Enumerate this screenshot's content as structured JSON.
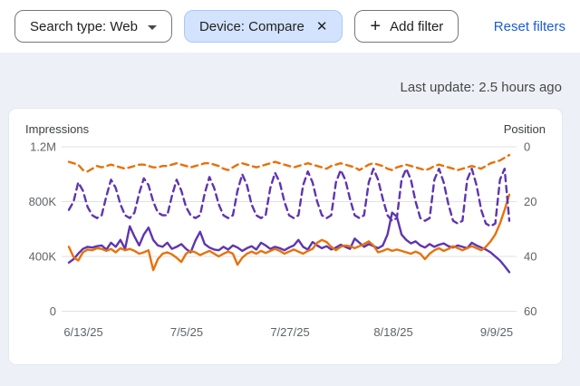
{
  "filters": {
    "search_type": {
      "label": "Search type: Web"
    },
    "device": {
      "label": "Device: Compare"
    },
    "add_filter": {
      "label": "Add filter",
      "plus": "+",
      "close": "✕"
    },
    "reset": {
      "label": "Reset filters"
    }
  },
  "status": {
    "last_update": "Last update: 2.5 hours ago"
  },
  "chart_data": {
    "type": "line",
    "x_ticks": [
      "6/13/25",
      "7/5/25",
      "7/27/25",
      "8/18/25",
      "9/9/25"
    ],
    "left_axis": {
      "label": "Impressions",
      "ticks": [
        "1.2M",
        "800K",
        "400K",
        "0"
      ],
      "range_k": [
        0,
        1200
      ],
      "unit": "impressions (thousands)"
    },
    "right_axis": {
      "label": "Position",
      "ticks": [
        "0",
        "20",
        "40",
        "60"
      ],
      "range": [
        0,
        60
      ],
      "inverted": true
    },
    "grid": "horizontal-only",
    "legend": "none",
    "series": [
      {
        "name": "impressions-compare-series-1",
        "metric": "Impressions",
        "axis": "left",
        "style": "solid",
        "color": "#5e35b1",
        "values": [
          355,
          380,
          420,
          455,
          470,
          465,
          475,
          480,
          450,
          500,
          470,
          520,
          455,
          620,
          545,
          480,
          560,
          610,
          520,
          480,
          470,
          500,
          455,
          470,
          490,
          455,
          430,
          515,
          580,
          490,
          465,
          450,
          445,
          470,
          450,
          480,
          465,
          440,
          460,
          475,
          450,
          500,
          480,
          455,
          470,
          460,
          445,
          465,
          480,
          520,
          470,
          450,
          505,
          480,
          460,
          475,
          450,
          465,
          485,
          470,
          455,
          530,
          500,
          470,
          490,
          475,
          460,
          480,
          560,
          720,
          690,
          560,
          520,
          495,
          510,
          480,
          465,
          490,
          470,
          485,
          495,
          475,
          465,
          480,
          470,
          460,
          500,
          480,
          465,
          450,
          430,
          400,
          370,
          330,
          285
        ]
      },
      {
        "name": "impressions-compare-series-2",
        "metric": "Impressions",
        "axis": "left",
        "style": "solid",
        "color": "#e8710a",
        "values": [
          470,
          395,
          370,
          430,
          450,
          445,
          460,
          455,
          440,
          455,
          430,
          460,
          445,
          455,
          440,
          420,
          430,
          445,
          300,
          380,
          420,
          430,
          415,
          390,
          360,
          420,
          440,
          430,
          410,
          425,
          440,
          420,
          400,
          420,
          435,
          420,
          340,
          390,
          420,
          435,
          420,
          440,
          425,
          440,
          455,
          440,
          420,
          435,
          450,
          435,
          420,
          440,
          455,
          500,
          520,
          505,
          470,
          445,
          470,
          480,
          475,
          460,
          475,
          490,
          510,
          480,
          430,
          440,
          455,
          440,
          450,
          440,
          430,
          420,
          435,
          420,
          380,
          420,
          445,
          460,
          440,
          455,
          475,
          460,
          445,
          460,
          475,
          460,
          445,
          470,
          510,
          560,
          640,
          740,
          850
        ]
      },
      {
        "name": "position-compare-series-1",
        "metric": "Position",
        "axis": "right",
        "style": "dashed",
        "color": "#5e35b1",
        "values": [
          23,
          20,
          13,
          16,
          22,
          25,
          26,
          25,
          18,
          12,
          15,
          21,
          25,
          26,
          24,
          17,
          11.5,
          14,
          20,
          24,
          25,
          25,
          18,
          12,
          16,
          22,
          25,
          26,
          25,
          17,
          11,
          15,
          21,
          25,
          26,
          25,
          16,
          10,
          14,
          21,
          25,
          26,
          25,
          15,
          9.5,
          13,
          20,
          25,
          26,
          25,
          14,
          9,
          13,
          20,
          25,
          26,
          25,
          13,
          8.5,
          12,
          19,
          25,
          26,
          25,
          13,
          8,
          12,
          19,
          25,
          27,
          26,
          12,
          8,
          12,
          20,
          26,
          27,
          26,
          12,
          8,
          13,
          21,
          27,
          28,
          27,
          12,
          8,
          14,
          23,
          28,
          29,
          28,
          12,
          8,
          27
        ]
      },
      {
        "name": "position-compare-series-2",
        "metric": "Position",
        "axis": "right",
        "style": "dashed",
        "color": "#e8710a",
        "values": [
          5.5,
          6,
          6.5,
          8.5,
          9,
          8,
          7,
          7.5,
          7,
          6.5,
          7,
          7.5,
          8,
          7.5,
          7,
          6.5,
          6.5,
          7,
          7.5,
          7.5,
          7,
          7,
          6.5,
          6,
          6.5,
          7,
          7.5,
          7,
          6.5,
          6,
          6,
          6.5,
          7,
          8,
          8.5,
          7.5,
          6.5,
          6,
          6.5,
          7,
          7.5,
          7,
          6.5,
          6,
          5.5,
          6,
          6.5,
          7,
          7.5,
          7,
          6.5,
          6,
          6.5,
          7,
          7.5,
          8,
          7,
          6.5,
          6,
          6.5,
          7,
          7.5,
          8.5,
          7.5,
          6.5,
          6,
          6.5,
          7,
          8,
          8.5,
          7.5,
          7,
          6.5,
          7,
          7.5,
          8,
          8.5,
          8,
          7,
          6.5,
          7,
          7.5,
          8,
          8.5,
          8,
          7.5,
          7,
          7.5,
          8,
          7,
          6,
          5.5,
          5,
          4,
          3
        ]
      }
    ]
  }
}
